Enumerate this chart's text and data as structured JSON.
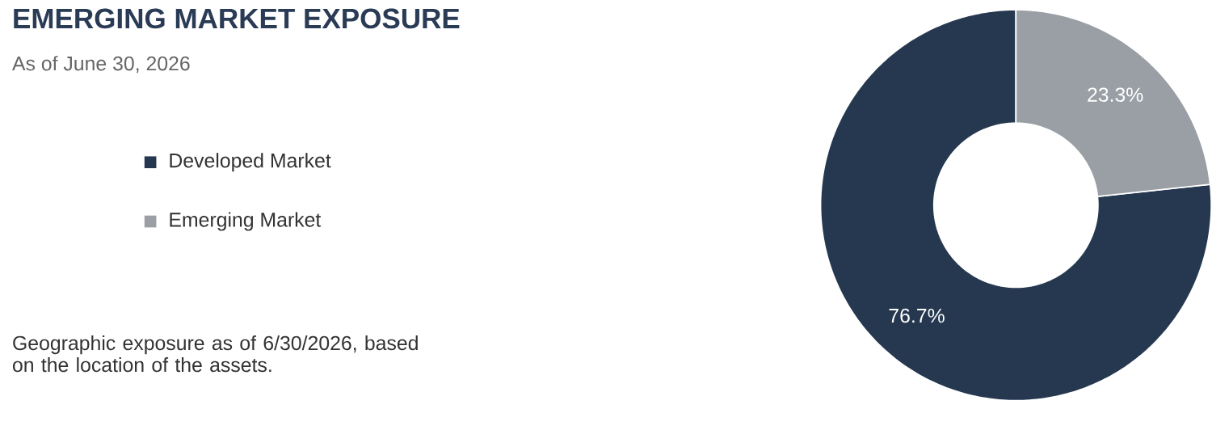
{
  "chart_data": {
    "type": "donut",
    "title": "EMERGING MARKET EXPOSURE",
    "subtitle": "As of June 30, 2026",
    "categories": [
      "Developed Market",
      "Emerging Market"
    ],
    "values": [
      76.7,
      23.3
    ],
    "colors": [
      "#253850",
      "#9a9fa5"
    ],
    "value_labels": [
      "76.7%",
      "23.3%"
    ],
    "legend": "left",
    "annotations": [
      "Geographic exposure as of 6/30/2026, based on the location of the assets."
    ]
  }
}
